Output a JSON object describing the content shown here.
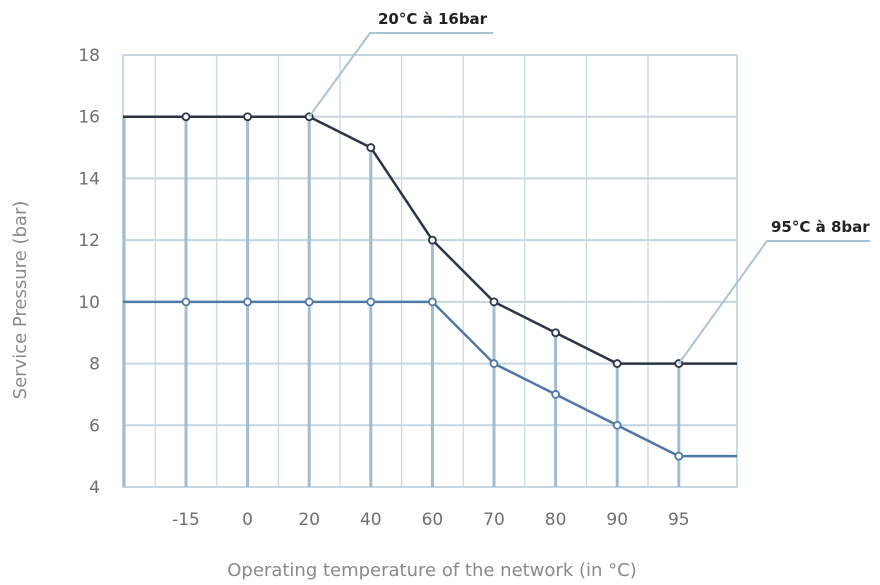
{
  "chart_data": {
    "type": "line",
    "xlabel": "Operating temperature of the network (in °C)",
    "ylabel": "Service Pressure (bar)",
    "categories": [
      "-15",
      "0",
      "20",
      "40",
      "60",
      "70",
      "80",
      "90",
      "95"
    ],
    "ylim": [
      4,
      18
    ],
    "yticks": [
      4,
      6,
      8,
      10,
      12,
      14,
      16,
      18
    ],
    "grid": true,
    "series": [
      {
        "values": [
          16,
          16,
          16,
          15,
          12,
          10,
          9,
          8,
          8
        ],
        "color": "#2b3548"
      },
      {
        "values": [
          10,
          10,
          10,
          10,
          10,
          8,
          7,
          6,
          5
        ],
        "color": "#4f79a6"
      }
    ],
    "annotations": [
      {
        "text": "20°C à 16bar",
        "category": "20",
        "value": 16
      },
      {
        "text": "95°C à 8bar",
        "category": "95",
        "value": 8
      }
    ],
    "colors": {
      "grid": "#c5d6e2",
      "vertical_bars": "#9fbdd0",
      "border": "#b8ccd9"
    }
  }
}
